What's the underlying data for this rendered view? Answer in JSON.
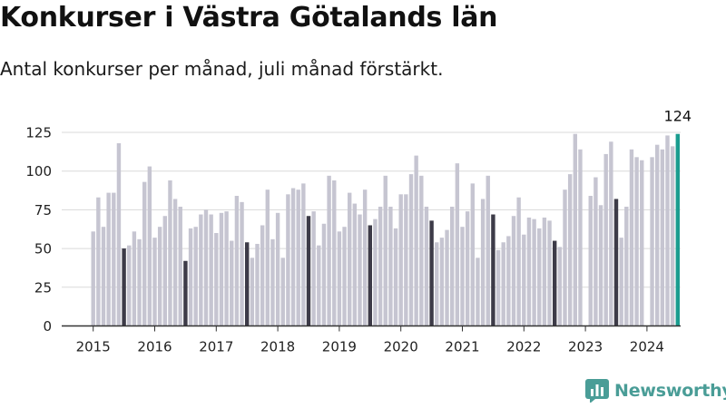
{
  "header": {
    "title": "Konkurser i Västra Götalands län",
    "subtitle": "Antal konkurser per månad, juli månad förstärkt."
  },
  "brand": {
    "name": "Newsworthy",
    "color": "#4a9d97",
    "icon": "bar-chart-icon"
  },
  "colors": {
    "bar": "#c6c5d1",
    "highlight": "#3d3b48",
    "latest": "#1a9c8f",
    "grid": "#dadada",
    "axis": "#333333"
  },
  "chart_data": {
    "type": "bar",
    "title": "Konkurser i Västra Götalands län",
    "subtitle": "Antal konkurser per månad, juli månad förstärkt.",
    "xlabel": "",
    "ylabel": "",
    "ylim": [
      0,
      125
    ],
    "yticks": [
      0,
      25,
      50,
      75,
      100,
      125
    ],
    "xtick_labels": [
      "2015",
      "2016",
      "2017",
      "2018",
      "2019",
      "2020",
      "2021",
      "2022",
      "2023",
      "2024"
    ],
    "start": "2015-01",
    "highlight_month": 7,
    "grid": true,
    "annotation": {
      "month": "2024-07",
      "label": "124"
    },
    "values": [
      61,
      83,
      64,
      86,
      86,
      118,
      50,
      52,
      61,
      56,
      93,
      103,
      57,
      64,
      71,
      94,
      82,
      77,
      42,
      63,
      64,
      72,
      75,
      72,
      60,
      73,
      74,
      55,
      84,
      80,
      54,
      44,
      53,
      65,
      88,
      56,
      73,
      44,
      85,
      89,
      88,
      92,
      71,
      74,
      52,
      66,
      97,
      94,
      61,
      64,
      86,
      79,
      72,
      88,
      65,
      69,
      77,
      97,
      77,
      63,
      85,
      85,
      98,
      110,
      97,
      77,
      68,
      54,
      57,
      62,
      77,
      105,
      64,
      74,
      92,
      44,
      82,
      97,
      72,
      49,
      54,
      58,
      71,
      83,
      59,
      70,
      69,
      63,
      70,
      68,
      55,
      51,
      88,
      98,
      124,
      114,
      0,
      84,
      96,
      78,
      111,
      119,
      82,
      57,
      77,
      114,
      109,
      107,
      0,
      109,
      117,
      114,
      123,
      116,
      124
    ]
  }
}
